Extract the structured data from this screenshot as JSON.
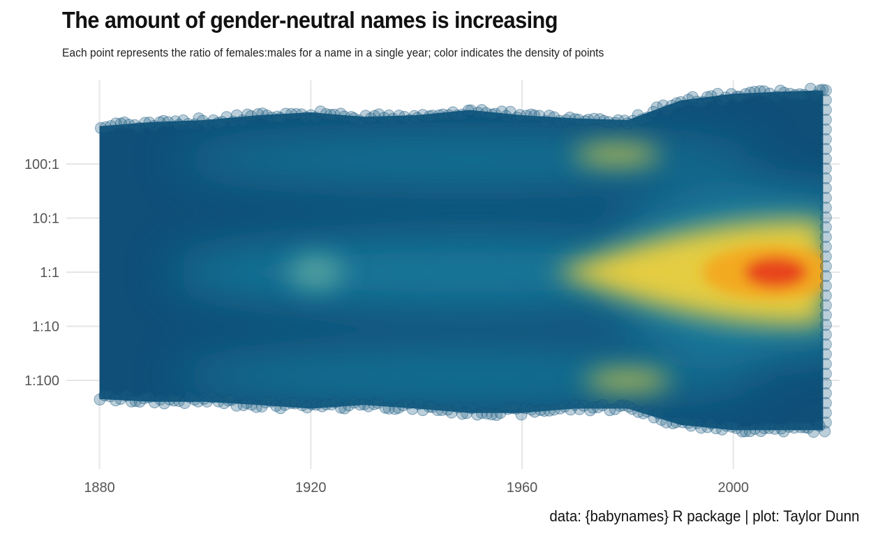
{
  "title": "The amount of gender-neutral names is increasing",
  "subtitle": "Each point represents the ratio of females:males for a name in a single year; color indicates the density of points",
  "caption": "data: {babynames} R package | plot: Taylor Dunn",
  "chart_data": {
    "type": "scatter",
    "title": "The amount of gender-neutral names is increasing",
    "subtitle": "Each point represents the ratio of females:males for a name in a single year; color indicates the density of points",
    "caption": "data: {babynames} R package | plot: Taylor Dunn",
    "x_axis": {
      "label": "",
      "ticks": [
        1880,
        1920,
        1960,
        2000
      ],
      "tick_labels": [
        "1880",
        "1920",
        "1960",
        "2000"
      ],
      "range": [
        1879,
        2018
      ]
    },
    "y_axis": {
      "label": "",
      "scale": "log10",
      "ticks": [
        100,
        10,
        1,
        0.1,
        0.01
      ],
      "tick_labels": [
        "100:1",
        "10:1",
        "1:1",
        "1:10",
        "1:100"
      ]
    },
    "grid": true,
    "legend": "none",
    "color_scale": [
      "#0f4f78",
      "#1a7fa0",
      "#5aa6a0",
      "#f0d23c",
      "#f3a81e",
      "#e8401f"
    ],
    "envelope": {
      "x": [
        1880,
        1890,
        1900,
        1910,
        1920,
        1930,
        1940,
        1950,
        1960,
        1970,
        1980,
        1990,
        2000,
        2010,
        2017
      ],
      "y_max": [
        500,
        600,
        650,
        800,
        900,
        750,
        800,
        1000,
        800,
        700,
        650,
        1500,
        2000,
        2200,
        2300
      ],
      "y_min": [
        0.0045,
        0.004,
        0.004,
        0.0035,
        0.003,
        0.0035,
        0.003,
        0.0025,
        0.0025,
        0.003,
        0.003,
        0.0015,
        0.0012,
        0.0012,
        0.0012
      ]
    },
    "density_hotspots": [
      {
        "year": 2008,
        "ratio": 1,
        "level": "highest"
      },
      {
        "year": 1921,
        "ratio": 1,
        "level": "moderate"
      },
      {
        "year": 1978,
        "ratio": 150,
        "level": "moderate"
      },
      {
        "year": 1980,
        "ratio": 0.01,
        "level": "moderate"
      }
    ]
  }
}
